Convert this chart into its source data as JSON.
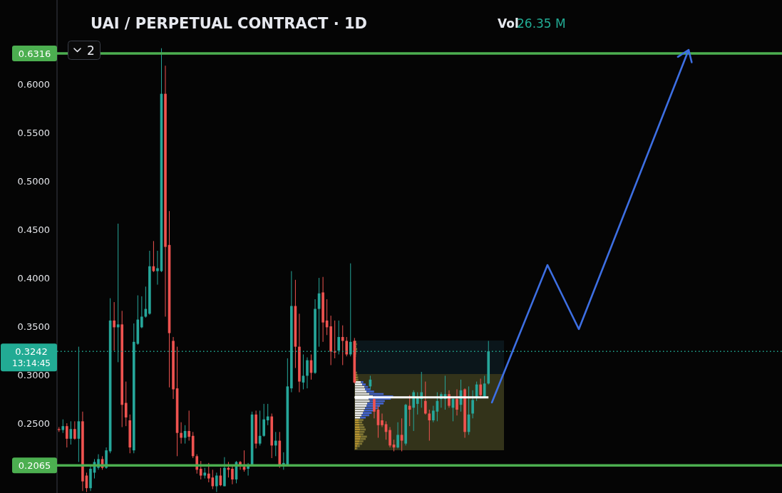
{
  "chart_data": {
    "type": "candlestick",
    "title": "UAI / PERPETUAL CONTRACT · 1D",
    "annotations": [
      "Vol",
      "26.35 M",
      "2"
    ],
    "categories": [
      null,
      null,
      null,
      null,
      null,
      null,
      null,
      null,
      null,
      null,
      null,
      null,
      null,
      null,
      null,
      null,
      null,
      null,
      null,
      null,
      null,
      null,
      null,
      null,
      null,
      null,
      null,
      null,
      null,
      null,
      null,
      null,
      null,
      null,
      null,
      null,
      null,
      null,
      null,
      null,
      null,
      null,
      null,
      null,
      null,
      null,
      null,
      null,
      null,
      null,
      null,
      null,
      null,
      null,
      null,
      null,
      null,
      null,
      null,
      null,
      null,
      null,
      null,
      null,
      null,
      null,
      null,
      null,
      null,
      null,
      null,
      null,
      null,
      null,
      null,
      null,
      null,
      null,
      null,
      null,
      null,
      null,
      null,
      null,
      null,
      null,
      null,
      null,
      null,
      null,
      null,
      null,
      null,
      null,
      null,
      null,
      null,
      null,
      null,
      null,
      null,
      null,
      null,
      null,
      null,
      null,
      null,
      null,
      null,
      null,
      null,
      null,
      null,
      null,
      null,
      null,
      null,
      null,
      null,
      null,
      null,
      null,
      null,
      null,
      null,
      null,
      null,
      null,
      null,
      null,
      null,
      null,
      null,
      null,
      null,
      null,
      null,
      null,
      null,
      null,
      null,
      null,
      null,
      null,
      null,
      null,
      null,
      null,
      null,
      null,
      null,
      null,
      null,
      null,
      null,
      null,
      null,
      null,
      null,
      null,
      null,
      null,
      null,
      null,
      null,
      null,
      null,
      null,
      null,
      null,
      null,
      null,
      null,
      null,
      null,
      null,
      null,
      null,
      null,
      null,
      null,
      null,
      null,
      null
    ],
    "ylim": [
      0.178,
      0.6868
    ],
    "yticks": [
      {
        "value": 0.25,
        "label": "0.2500"
      },
      {
        "value": 0.3,
        "label": "0.3000"
      },
      {
        "value": 0.35,
        "label": "0.3500"
      },
      {
        "value": 0.4,
        "label": "0.4000"
      },
      {
        "value": 0.45,
        "label": "0.4500"
      },
      {
        "value": 0.5,
        "label": "0.5000"
      },
      {
        "value": 0.55,
        "label": "0.5500"
      },
      {
        "value": 0.6,
        "label": "0.6000"
      }
    ],
    "tick_labels": "y",
    "ref_lines": [
      {
        "axis": "y",
        "value": 0.6316,
        "label": "0.6316",
        "color": "#4caf50"
      },
      {
        "axis": "y",
        "value": 0.2065,
        "label": "0.2065",
        "color": "#4caf50"
      },
      {
        "axis": "y",
        "value": 0.3242,
        "label": "0.3242\n13:14:45",
        "color": "#22ab94",
        "line_style": "dotted"
      }
    ],
    "series": [
      {
        "type": "candlestick",
        "ohlc": [
          [
            0.244,
            0.246,
            0.241,
            0.243
          ],
          [
            0.243,
            0.254,
            0.24,
            0.247
          ],
          [
            0.247,
            0.25,
            0.225,
            0.234
          ],
          [
            0.234,
            0.252,
            0.228,
            0.244
          ],
          [
            0.244,
            0.252,
            0.233,
            0.234
          ],
          [
            0.234,
            0.329,
            0.21,
            0.252
          ],
          [
            0.252,
            0.262,
            0.18,
            0.19
          ],
          [
            0.196,
            0.199,
            0.179,
            0.183
          ],
          [
            0.183,
            0.207,
            0.18,
            0.203
          ],
          [
            0.199,
            0.213,
            0.193,
            0.21
          ],
          [
            0.204,
            0.218,
            0.202,
            0.213
          ],
          [
            0.213,
            0.216,
            0.202,
            0.204
          ],
          [
            0.204,
            0.225,
            0.203,
            0.222
          ],
          [
            0.221,
            0.379,
            0.219,
            0.356
          ],
          [
            0.356,
            0.375,
            0.325,
            0.349
          ],
          [
            0.349,
            0.456,
            0.313,
            0.352
          ],
          [
            0.352,
            0.366,
            0.246,
            0.269
          ],
          [
            0.271,
            0.293,
            0.247,
            0.256
          ],
          [
            0.253,
            0.259,
            0.219,
            0.225
          ],
          [
            0.222,
            0.353,
            0.219,
            0.334
          ],
          [
            0.332,
            0.382,
            0.331,
            0.357
          ],
          [
            0.349,
            0.381,
            0.348,
            0.36
          ],
          [
            0.36,
            0.391,
            0.359,
            0.368
          ],
          [
            0.363,
            0.428,
            0.362,
            0.412
          ],
          [
            0.412,
            0.438,
            0.406,
            0.407
          ],
          [
            0.407,
            0.428,
            0.393,
            0.41
          ],
          [
            0.407,
            0.637,
            0.406,
            0.59
          ],
          [
            0.59,
            0.619,
            0.36,
            0.432
          ],
          [
            0.434,
            0.469,
            0.287,
            0.343
          ],
          [
            0.335,
            0.339,
            0.275,
            0.285
          ],
          [
            0.286,
            0.329,
            0.216,
            0.24
          ],
          [
            0.24,
            0.251,
            0.229,
            0.235
          ],
          [
            0.235,
            0.248,
            0.229,
            0.242
          ],
          [
            0.242,
            0.263,
            0.232,
            0.236
          ],
          [
            0.237,
            0.241,
            0.214,
            0.216
          ],
          [
            0.216,
            0.218,
            0.198,
            0.202
          ],
          [
            0.203,
            0.211,
            0.192,
            0.196
          ],
          [
            0.196,
            0.204,
            0.193,
            0.199
          ],
          [
            0.198,
            0.209,
            0.189,
            0.193
          ],
          [
            0.194,
            0.202,
            0.182,
            0.185
          ],
          [
            0.185,
            0.199,
            0.179,
            0.196
          ],
          [
            0.196,
            0.204,
            0.185,
            0.186
          ],
          [
            0.185,
            0.215,
            0.185,
            0.204
          ],
          [
            0.204,
            0.21,
            0.194,
            0.202
          ],
          [
            0.203,
            0.207,
            0.187,
            0.192
          ],
          [
            0.192,
            0.211,
            0.188,
            0.21
          ],
          [
            0.21,
            0.211,
            0.202,
            0.207
          ],
          [
            0.205,
            0.222,
            0.2,
            0.202
          ],
          [
            0.203,
            0.209,
            0.196,
            0.207
          ],
          [
            0.207,
            0.262,
            0.207,
            0.259
          ],
          [
            0.259,
            0.263,
            0.224,
            0.229
          ],
          [
            0.229,
            0.263,
            0.227,
            0.237
          ],
          [
            0.237,
            0.27,
            0.236,
            0.254
          ],
          [
            0.253,
            0.27,
            0.248,
            0.257
          ],
          [
            0.257,
            0.26,
            0.214,
            0.227
          ],
          [
            0.227,
            0.241,
            0.216,
            0.232
          ],
          [
            0.232,
            0.241,
            0.204,
            0.207
          ],
          [
            0.207,
            0.22,
            0.202,
            0.209
          ],
          [
            0.207,
            0.317,
            0.207,
            0.288
          ],
          [
            0.286,
            0.407,
            0.282,
            0.371
          ],
          [
            0.371,
            0.398,
            0.307,
            0.329
          ],
          [
            0.329,
            0.363,
            0.282,
            0.293
          ],
          [
            0.292,
            0.321,
            0.285,
            0.299
          ],
          [
            0.299,
            0.318,
            0.286,
            0.315
          ],
          [
            0.315,
            0.321,
            0.295,
            0.302
          ],
          [
            0.302,
            0.378,
            0.301,
            0.368
          ],
          [
            0.368,
            0.4,
            0.329,
            0.384
          ],
          [
            0.385,
            0.401,
            0.334,
            0.354
          ],
          [
            0.356,
            0.378,
            0.341,
            0.349
          ],
          [
            0.35,
            0.361,
            0.31,
            0.324
          ],
          [
            0.324,
            0.356,
            0.317,
            0.323
          ],
          [
            0.325,
            0.356,
            0.321,
            0.339
          ],
          [
            0.339,
            0.351,
            0.31,
            0.335
          ],
          [
            0.335,
            0.339,
            0.319,
            0.321
          ],
          [
            0.321,
            0.415,
            0.319,
            0.334
          ],
          [
            0.335,
            0.338,
            0.291,
            0.292
          ],
          null,
          null,
          null,
          [
            0.288,
            0.299,
            0.285,
            0.295
          ],
          [
            0.275,
            0.277,
            0.255,
            0.262
          ],
          [
            0.264,
            0.268,
            0.235,
            0.248
          ],
          [
            0.253,
            0.26,
            0.246,
            0.248
          ],
          [
            0.249,
            0.252,
            0.233,
            0.241
          ],
          [
            0.243,
            0.246,
            0.225,
            0.227
          ],
          [
            0.228,
            0.233,
            0.221,
            0.225
          ],
          [
            0.225,
            0.251,
            0.224,
            0.238
          ],
          [
            0.238,
            0.255,
            0.221,
            0.232
          ],
          [
            0.229,
            0.27,
            0.227,
            0.269
          ],
          [
            0.268,
            0.279,
            0.247,
            0.264
          ],
          [
            0.266,
            0.284,
            0.242,
            0.282
          ],
          [
            0.27,
            0.282,
            0.259,
            0.277
          ],
          [
            0.275,
            0.303,
            0.266,
            0.282
          ],
          [
            0.273,
            0.293,
            0.259,
            0.26
          ],
          [
            0.26,
            0.264,
            0.232,
            0.253
          ],
          [
            0.253,
            0.268,
            0.251,
            0.263
          ],
          [
            0.262,
            0.282,
            0.252,
            0.273
          ],
          [
            0.275,
            0.282,
            0.266,
            0.28
          ],
          [
            0.275,
            0.299,
            0.264,
            0.28
          ],
          [
            0.28,
            0.284,
            0.266,
            0.268
          ],
          [
            0.266,
            0.277,
            0.252,
            0.275
          ],
          [
            0.275,
            0.285,
            0.258,
            0.264
          ],
          [
            0.269,
            0.295,
            0.262,
            0.284
          ],
          [
            0.285,
            0.286,
            0.235,
            0.241
          ],
          [
            0.241,
            0.288,
            0.238,
            0.259
          ],
          [
            0.26,
            0.284,
            0.255,
            0.274
          ],
          [
            0.277,
            0.293,
            0.273,
            0.29
          ],
          [
            0.29,
            0.296,
            0.277,
            0.279
          ],
          [
            0.277,
            0.299,
            0.277,
            0.291
          ],
          [
            0.291,
            0.335,
            0.29,
            0.3242
          ],
          null,
          null,
          null,
          null,
          null,
          null,
          null,
          null,
          null,
          null,
          null,
          null,
          null,
          null,
          null,
          null,
          null,
          null,
          null,
          null,
          null,
          null,
          null,
          null,
          null,
          null,
          null,
          null,
          null,
          null,
          null,
          null,
          null,
          null,
          null,
          null,
          null,
          null,
          null,
          null,
          null,
          null,
          null,
          null,
          null,
          null,
          null,
          null,
          null,
          null,
          null,
          null,
          null,
          null,
          null,
          null,
          null,
          null,
          null,
          null,
          null,
          null,
          null,
          null,
          null,
          null,
          null,
          null,
          null,
          null,
          null,
          null,
          null,
          null
        ],
        "colors": [
          "#ef5350",
          "#26a69a",
          "#ef5350",
          "#26a69a",
          "#ef5350",
          "#26a69a",
          "#ef5350",
          "#ef5350",
          "#26a69a",
          "#26a69a",
          "#26a69a",
          "#ef5350",
          "#26a69a",
          "#26a69a",
          "#ef5350",
          "#26a69a",
          "#ef5350",
          "#ef5350",
          "#ef5350",
          "#26a69a",
          "#26a69a",
          "#26a69a",
          "#26a69a",
          "#26a69a",
          "#ef5350",
          "#26a69a",
          "#26a69a",
          "#ef5350",
          "#ef5350",
          "#ef5350",
          "#ef5350",
          "#ef5350",
          "#26a69a",
          "#ef5350",
          "#ef5350",
          "#ef5350",
          "#ef5350",
          "#26a69a",
          "#ef5350",
          "#ef5350",
          "#26a69a",
          "#ef5350",
          "#26a69a",
          "#ef5350",
          "#ef5350",
          "#26a69a",
          "#ef5350",
          "#ef5350",
          "#26a69a",
          "#26a69a",
          "#ef5350",
          "#26a69a",
          "#26a69a",
          "#26a69a",
          "#ef5350",
          "#26a69a",
          "#ef5350",
          "#26a69a",
          "#26a69a",
          "#26a69a",
          "#ef5350",
          "#ef5350",
          "#26a69a",
          "#26a69a",
          "#ef5350",
          "#26a69a",
          "#26a69a",
          "#ef5350",
          "#ef5350",
          "#ef5350",
          "#ef5350",
          "#26a69a",
          "#ef5350",
          "#ef5350",
          "#26a69a",
          "#ef5350",
          null,
          null,
          null,
          "#26a69a",
          "#ef5350",
          "#ef5350",
          "#ef5350",
          "#ef5350",
          "#ef5350",
          "#ef5350",
          "#26a69a",
          "#ef5350",
          "#26a69a",
          "#ef5350",
          "#26a69a",
          "#26a69a",
          "#26a69a",
          "#ef5350",
          "#ef5350",
          "#26a69a",
          "#26a69a",
          "#26a69a",
          "#26a69a",
          "#ef5350",
          "#26a69a",
          "#ef5350",
          "#26a69a",
          "#ef5350",
          "#26a69a",
          "#26a69a",
          "#26a69a",
          "#ef5350",
          "#26a69a",
          "#26a69a",
          null,
          null,
          null,
          null,
          null,
          null,
          null,
          null,
          null,
          null,
          null,
          null,
          null,
          null,
          null,
          null,
          null,
          null,
          null,
          null,
          null,
          null,
          null,
          null,
          null,
          null,
          null,
          null,
          null,
          null,
          null,
          null,
          null,
          null,
          null,
          null,
          null,
          null,
          null,
          null,
          null,
          null,
          null,
          null,
          null,
          null,
          null,
          null,
          null,
          null,
          null,
          null,
          null,
          null,
          null,
          null,
          null,
          null,
          null,
          null,
          null,
          null,
          null,
          null,
          null,
          null,
          null,
          null,
          null,
          null,
          null,
          null,
          null,
          null
        ]
      },
      {
        "type": "line",
        "color": "#ffffff",
        "values": [
          null,
          null,
          null,
          null,
          null,
          null,
          null,
          null,
          null,
          null,
          null,
          null,
          null,
          null,
          null,
          null,
          null,
          null,
          null,
          null,
          null,
          null,
          null,
          null,
          null,
          null,
          null,
          null,
          null,
          null,
          null,
          null,
          null,
          null,
          null,
          null,
          null,
          null,
          null,
          null,
          null,
          null,
          null,
          null,
          null,
          null,
          null,
          null,
          null,
          null,
          null,
          null,
          null,
          null,
          null,
          null,
          null,
          null,
          null,
          null,
          null,
          null,
          null,
          null,
          null,
          null,
          null,
          null,
          null,
          null,
          null,
          null,
          null,
          null,
          null,
          0.2767,
          0.2767,
          0.2767,
          0.2767,
          0.2767,
          0.2767,
          0.2767,
          0.2767,
          0.2767,
          0.2767,
          0.2767,
          0.2767,
          0.2767,
          0.2767,
          0.2767,
          0.2767,
          0.2767,
          0.2767,
          0.2767,
          0.2767,
          0.2767,
          0.2767,
          0.2767,
          0.2767,
          0.2767,
          0.2767,
          0.2767,
          0.2767,
          0.2767,
          0.2767,
          0.2767,
          0.2767,
          0.2767,
          0.2767,
          0.2767,
          null,
          null,
          null,
          null,
          null,
          null,
          null,
          null,
          null,
          null,
          null,
          null,
          null,
          null,
          null,
          null,
          null,
          null,
          null,
          null,
          null,
          null,
          null,
          null,
          null,
          null,
          null,
          null,
          null,
          null,
          null,
          null,
          null,
          null,
          null,
          null,
          null,
          null,
          null,
          null,
          null,
          null,
          null,
          null,
          null,
          null,
          null,
          null,
          null,
          null,
          null,
          null,
          null,
          null,
          null,
          null,
          null,
          null,
          null,
          null,
          null,
          null,
          null,
          null,
          null,
          null,
          null,
          null,
          null,
          null,
          null,
          null,
          null,
          null
        ]
      }
    ]
  }
}
